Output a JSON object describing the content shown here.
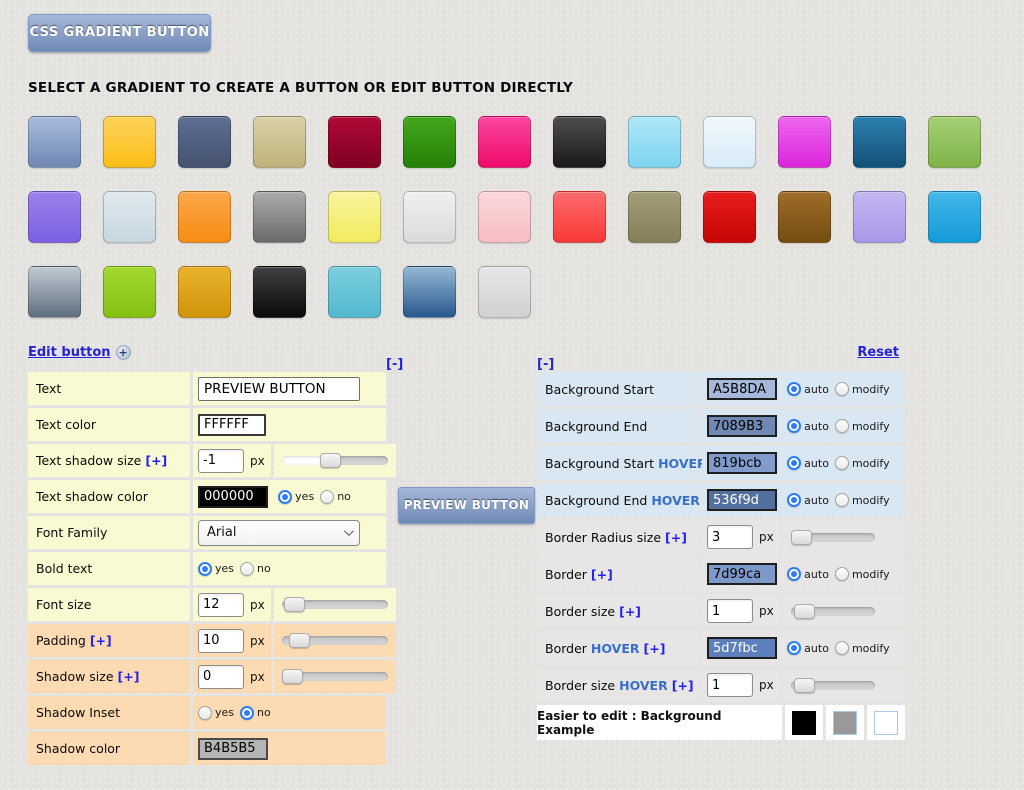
{
  "page": {
    "title_button": "CSS GRADIENT BUTTON",
    "heading": "SELECT A GRADIENT TO CREATE A BUTTON OR EDIT BUTTON DIRECTLY"
  },
  "theme": {
    "bg_start": "#a5b8da",
    "bg_end": "#7089b3",
    "border": "#7d99ca",
    "text_color": "#ffffff"
  },
  "swatches": {
    "rows": [
      [
        {
          "s": "#a7badc",
          "e": "#7089b3"
        },
        {
          "s": "#fdd35a",
          "e": "#fcbd17"
        },
        {
          "s": "#5e6f94",
          "e": "#45526f"
        },
        {
          "s": "#d9d2a6",
          "e": "#beb27c"
        },
        {
          "s": "#af0936",
          "e": "#7f0022"
        },
        {
          "s": "#43a81d",
          "e": "#258006"
        },
        {
          "s": "#fb47a0",
          "e": "#ef0a6a"
        },
        {
          "s": "#4c4c4c",
          "e": "#1b1b1b"
        },
        {
          "s": "#b0e7f8",
          "e": "#7ed4f0"
        },
        {
          "s": "#f0f8fd",
          "e": "#d8ecf8"
        },
        {
          "s": "#ee65ee",
          "e": "#dc25dc"
        },
        {
          "s": "#2d80af",
          "e": "#135179"
        },
        {
          "s": "#a6cf77",
          "e": "#7fb348"
        }
      ],
      [
        {
          "s": "#9a81eb",
          "e": "#7c60e2"
        },
        {
          "s": "#e0eaef",
          "e": "#c7d7e0"
        },
        {
          "s": "#fba84a",
          "e": "#f78c12"
        },
        {
          "s": "#ababab",
          "e": "#6b6b6b"
        },
        {
          "s": "#f9f59c",
          "e": "#f2eb60"
        },
        {
          "s": "#f0f0f0",
          "e": "#dbdbdb"
        },
        {
          "s": "#fbd7da",
          "e": "#f7bec3"
        },
        {
          "s": "#fc6c6c",
          "e": "#fa3838"
        },
        {
          "s": "#a29c79",
          "e": "#847e59"
        },
        {
          "s": "#e71d1d",
          "e": "#c50606"
        },
        {
          "s": "#9e6d29",
          "e": "#744e11"
        },
        {
          "s": "#c4b7f1",
          "e": "#a997ea"
        },
        {
          "s": "#43b7e9",
          "e": "#149bd9"
        }
      ],
      [
        {
          "s": "#bfcad3",
          "e": "#606f7e"
        },
        {
          "s": "#a4d930",
          "e": "#84c011"
        },
        {
          "s": "#eab22c",
          "e": "#d0940c"
        },
        {
          "s": "#404040",
          "e": "#0a0a0a"
        },
        {
          "s": "#7ccede",
          "e": "#52b9d0"
        },
        {
          "s": "#93b9d3",
          "e": "#29588e"
        },
        {
          "s": "#e7e7e7",
          "e": "#d1d1d1"
        }
      ]
    ]
  },
  "edit": {
    "link_label": "Edit button",
    "plus_badge": "+",
    "left_collapse": "[-]",
    "right_collapse": "[-]",
    "reset_label": "Reset"
  },
  "mid": {
    "preview_label": "PREVIEW BUTTON"
  },
  "left_rows": [
    {
      "name": "text",
      "label": "Text",
      "tone": "yellow",
      "control": {
        "type": "text",
        "value": "PREVIEW BUTTON"
      }
    },
    {
      "name": "text-color",
      "label": "Text color",
      "tone": "yellow",
      "control": {
        "type": "colortext",
        "value": "FFFFFF"
      }
    },
    {
      "name": "text-shadow-size",
      "label": "Text shadow size",
      "plus": true,
      "tone": "yellow",
      "control": {
        "type": "number",
        "value": "-1",
        "unit": "px",
        "slider": {
          "pct": 45,
          "fill": true
        }
      }
    },
    {
      "name": "text-shadow-color",
      "label": "Text shadow color",
      "tone": "yellow",
      "control": {
        "type": "swatch",
        "value": "000000",
        "bg": "#000000",
        "fg": "#ffffff",
        "border": "#1e1e1e",
        "radios": {
          "options": [
            "yes",
            "no"
          ],
          "selected": 0
        }
      }
    },
    {
      "name": "font-family",
      "label": "Font Family",
      "tone": "yellow",
      "control": {
        "type": "select",
        "value": "Arial"
      }
    },
    {
      "name": "bold-text",
      "label": "Bold text",
      "tone": "yellow",
      "control": {
        "type": "radios",
        "radios": {
          "options": [
            "yes",
            "no"
          ],
          "selected": 0
        }
      }
    },
    {
      "name": "font-size",
      "label": "Font size",
      "tone": "yellow",
      "control": {
        "type": "number",
        "value": "12",
        "unit": "px",
        "slider": {
          "pct": 2
        }
      }
    },
    {
      "name": "padding",
      "label": "Padding",
      "plus": true,
      "tone": "peach",
      "control": {
        "type": "number",
        "value": "10",
        "unit": "px",
        "slider": {
          "pct": 8
        }
      }
    },
    {
      "name": "shadow-size",
      "label": "Shadow size",
      "plus": true,
      "tone": "peach",
      "control": {
        "type": "number",
        "value": "0",
        "unit": "px",
        "slider": {
          "pct": 0
        }
      }
    },
    {
      "name": "shadow-inset",
      "label": "Shadow Inset",
      "tone": "peach",
      "control": {
        "type": "radios",
        "radios": {
          "options": [
            "yes",
            "no"
          ],
          "selected": 1
        }
      }
    },
    {
      "name": "shadow-color",
      "label": "Shadow color",
      "tone": "peach",
      "control": {
        "type": "swatch",
        "value": "B4B5B5",
        "bg": "#b4b5b5",
        "fg": "#000000",
        "border": "#4a4a4a"
      }
    }
  ],
  "right_rows": [
    {
      "name": "background-start",
      "label": "Background Start",
      "tone": "blue",
      "control": {
        "type": "swatch",
        "value": "A5B8DA",
        "bg": "#a5b8da",
        "fg": "#000000",
        "border": "#1e1e1e",
        "radios": {
          "options": [
            "auto",
            "modify"
          ],
          "selected": 0
        }
      }
    },
    {
      "name": "background-end",
      "label": "Background End",
      "tone": "blue",
      "control": {
        "type": "swatch",
        "value": "7089B3",
        "bg": "#7089b3",
        "fg": "#000000",
        "border": "#1e1e1e",
        "radios": {
          "options": [
            "auto",
            "modify"
          ],
          "selected": 0
        }
      }
    },
    {
      "name": "background-start-hover",
      "label": "Background Start",
      "hover": true,
      "tone": "blue",
      "control": {
        "type": "swatch",
        "value": "819bcb",
        "bg": "#819bcb",
        "fg": "#000000",
        "border": "#1e1e1e",
        "radios": {
          "options": [
            "auto",
            "modify"
          ],
          "selected": 0
        }
      }
    },
    {
      "name": "background-end-hover",
      "label": "Background End",
      "hover": true,
      "tone": "blue",
      "control": {
        "type": "swatch",
        "value": "536f9d",
        "bg": "#536f9d",
        "fg": "#ffffff",
        "border": "#1e1e1e",
        "radios": {
          "options": [
            "auto",
            "modify"
          ],
          "selected": 0
        }
      }
    },
    {
      "name": "border-radius-size",
      "label": "Border Radius size",
      "plus": true,
      "tone": "gray",
      "control": {
        "type": "number",
        "value": "3",
        "unit": "px",
        "slider": {
          "pct": 0,
          "small": true
        }
      }
    },
    {
      "name": "border",
      "label": "Border",
      "plus": true,
      "tone": "gray",
      "control": {
        "type": "swatch",
        "value": "7d99ca",
        "bg": "#7d99ca",
        "fg": "#000000",
        "border": "#1e1e1e",
        "radios": {
          "options": [
            "auto",
            "modify"
          ],
          "selected": 0
        }
      }
    },
    {
      "name": "border-size",
      "label": "Border size",
      "plus": true,
      "tone": "gray",
      "control": {
        "type": "number",
        "value": "1",
        "unit": "px",
        "slider": {
          "pct": 5,
          "small": true
        }
      }
    },
    {
      "name": "border-hover",
      "label": "Border",
      "hover": true,
      "plus": true,
      "tone": "gray",
      "control": {
        "type": "swatch",
        "value": "5d7fbc",
        "bg": "#5d7fbc",
        "fg": "#ffffff",
        "border": "#1e1e1e",
        "radios": {
          "options": [
            "auto",
            "modify"
          ],
          "selected": 0
        }
      }
    },
    {
      "name": "border-size-hover",
      "label": "Border size",
      "hover": true,
      "plus": true,
      "tone": "gray",
      "control": {
        "type": "number",
        "value": "1",
        "unit": "px",
        "slider": {
          "pct": 5,
          "small": true
        }
      }
    }
  ],
  "bottom_row": {
    "label": "Easier to edit : Background Example",
    "cells": [
      {
        "name": "example-black-swatch",
        "bg": "#000000",
        "border": "#000000"
      },
      {
        "name": "example-gray-swatch",
        "bg": "#999999",
        "border": "#aacbe3"
      },
      {
        "name": "example-white-swatch",
        "bg": "#ffffff",
        "border": "#aacbe3"
      }
    ]
  }
}
